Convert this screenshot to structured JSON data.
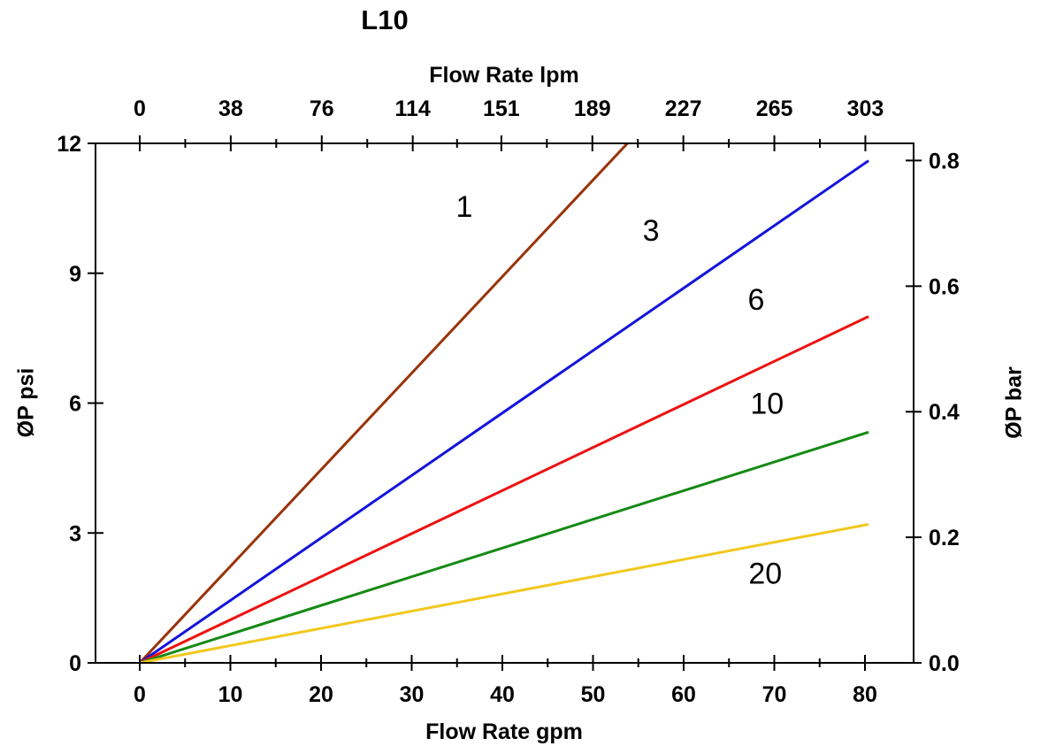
{
  "chart_data": {
    "type": "line",
    "title": "L10",
    "axes": {
      "top": {
        "label": "Flow Rate lpm",
        "ticks": [
          0,
          38,
          76,
          114,
          151,
          189,
          227,
          265,
          303
        ]
      },
      "bottom": {
        "label": "Flow Rate gpm",
        "ticks": [
          0,
          10,
          20,
          30,
          40,
          50,
          60,
          70,
          80
        ],
        "minor_step": 5,
        "range": [
          0,
          80
        ]
      },
      "left": {
        "label": "ØP psi",
        "ticks": [
          0,
          3,
          6,
          9,
          12
        ],
        "range": [
          0,
          12
        ]
      },
      "right": {
        "label": "ØP bar",
        "ticks": [
          0.0,
          0.2,
          0.4,
          0.6,
          0.8
        ],
        "psi_per_bar": 14.50377
      }
    },
    "grid": false,
    "legend": false,
    "series": [
      {
        "name": "1",
        "color": "#99330a",
        "points_gpm_psi": [
          [
            0,
            0
          ],
          [
            53.8,
            12.0
          ]
        ],
        "label": {
          "text": "1",
          "x": 35.8,
          "y": 10.55
        }
      },
      {
        "name": "3",
        "color": "#1414dc",
        "points_gpm_psi": [
          [
            0,
            0
          ],
          [
            80.4,
            11.6
          ]
        ],
        "label": {
          "text": "3",
          "x": 56.4,
          "y": 10.0
        }
      },
      {
        "name": "6",
        "color": "#ee1111",
        "points_gpm_psi": [
          [
            0,
            0
          ],
          [
            80.4,
            8.0
          ]
        ],
        "label": {
          "text": "6",
          "x": 68.0,
          "y": 8.4
        }
      },
      {
        "name": "10",
        "color": "#148a14",
        "points_gpm_psi": [
          [
            0,
            0
          ],
          [
            80.4,
            5.33
          ]
        ],
        "label": {
          "text": "10",
          "x": 69.2,
          "y": 6.0
        }
      },
      {
        "name": "20",
        "color": "#f2c81e",
        "points_gpm_psi": [
          [
            0,
            0
          ],
          [
            80.4,
            3.2
          ]
        ],
        "label": {
          "text": "20",
          "x": 69.0,
          "y": 2.08
        }
      }
    ]
  }
}
